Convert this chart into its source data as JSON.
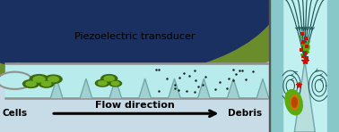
{
  "fig_width": 3.78,
  "fig_height": 1.48,
  "dpi": 100,
  "bg_color": "#c8e8e8",
  "left_panel": {
    "bg_upper": "#c8dce8",
    "bg_lower": "#c8dce8",
    "transducer_outer_color": "#6b8c2a",
    "transducer_inner_color": "#1a3060",
    "channel_fill": "#b8ecec",
    "channel_border": "#909090",
    "sharp_edge_fill": "#a8d8d8",
    "sharp_edge_line": "#78b0b0",
    "cell_dark": "#3a6a10",
    "cell_light": "#70b020",
    "debris_color": "#222222",
    "label_cells": "Cells",
    "label_flow": "Flow direction",
    "label_debris": "Debris",
    "label_transducer": "Piezoelectric transducer",
    "arrow_color": "#000000"
  },
  "right_panel": {
    "bg": "#a8e0e0",
    "channel_fill": "#c8f0f0",
    "wall_color": "#88c8c8",
    "tip_fill": "#c0e0e0",
    "streamline_color": "#1a5050",
    "cell_outer": "#5aaa10",
    "cell_mid": "#cc7700",
    "cell_inner": "#bb4400",
    "debris_red": "#cc1100",
    "debris_green": "#33aa00"
  }
}
